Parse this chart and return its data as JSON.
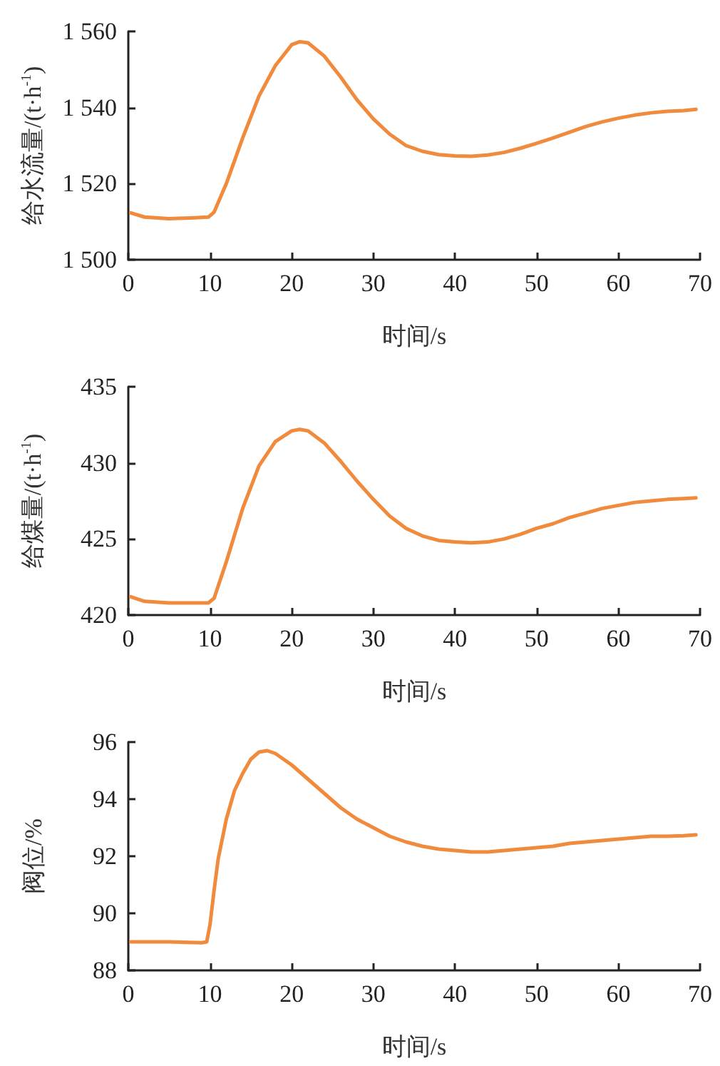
{
  "chart_data": [
    {
      "type": "line",
      "xlabel": "时间/s",
      "ylabel": "给水流量/(t·h$^{-1}$)",
      "xlim": [
        0,
        70
      ],
      "xticks": [
        0,
        10,
        20,
        30,
        40,
        50,
        60,
        70
      ],
      "ylim": [
        1500,
        1560
      ],
      "yticks": [
        {
          "value": 1500,
          "label": "1 500"
        },
        {
          "value": 1520,
          "label": "1 520"
        },
        {
          "value": 1540,
          "label": "1 540"
        },
        {
          "value": 1560,
          "label": "1 560"
        }
      ],
      "grid": false,
      "marker": "none",
      "line_style": "solid",
      "series": [
        {
          "color": "#f08a3c",
          "x": [
            0.3,
            2,
            5,
            8,
            9.8,
            10.5,
            12,
            14,
            16,
            18,
            20,
            21,
            22,
            24,
            26,
            28,
            30,
            32,
            34,
            36,
            38,
            40,
            42,
            44,
            46,
            48,
            50,
            52,
            54,
            56,
            58,
            60,
            62,
            64,
            66,
            68,
            69.5
          ],
          "values": [
            1512.3,
            1511.2,
            1510.8,
            1511,
            1511.2,
            1512.5,
            1520,
            1532,
            1543,
            1551,
            1556.5,
            1557.3,
            1557,
            1553.5,
            1548,
            1542,
            1537,
            1533,
            1530,
            1528.5,
            1527.6,
            1527.3,
            1527.2,
            1527.5,
            1528.2,
            1529.3,
            1530.6,
            1532,
            1533.5,
            1535,
            1536.2,
            1537.2,
            1538,
            1538.6,
            1539,
            1539.2,
            1539.5
          ]
        }
      ]
    },
    {
      "type": "line",
      "xlabel": "时间/s",
      "ylabel": "给煤量/(t·h$^{-1}$)",
      "xlim": [
        0,
        70
      ],
      "xticks": [
        0,
        10,
        20,
        30,
        40,
        50,
        60,
        70
      ],
      "ylim": [
        420,
        435
      ],
      "yticks": [
        420,
        425,
        430,
        435
      ],
      "grid": false,
      "marker": "none",
      "line_style": "solid",
      "series": [
        {
          "color": "#f08a3c",
          "x": [
            0.3,
            2,
            5,
            8,
            9.8,
            10.5,
            12,
            14,
            16,
            18,
            20,
            21,
            22,
            24,
            26,
            28,
            30,
            32,
            34,
            36,
            38,
            40,
            42,
            44,
            46,
            48,
            50,
            52,
            54,
            56,
            58,
            60,
            62,
            64,
            66,
            68,
            69.5
          ],
          "values": [
            421.2,
            420.9,
            420.8,
            420.8,
            420.8,
            421.1,
            423.5,
            427,
            429.8,
            431.4,
            432.1,
            432.2,
            432.1,
            431.3,
            430.1,
            428.8,
            427.6,
            426.5,
            425.7,
            425.2,
            424.9,
            424.8,
            424.75,
            424.8,
            425,
            425.3,
            425.7,
            426,
            426.4,
            426.7,
            427,
            427.2,
            427.4,
            427.5,
            427.6,
            427.65,
            427.7
          ]
        }
      ]
    },
    {
      "type": "line",
      "xlabel": "时间/s",
      "ylabel": "阀位/%",
      "xlim": [
        0,
        70
      ],
      "xticks": [
        0,
        10,
        20,
        30,
        40,
        50,
        60,
        70
      ],
      "ylim": [
        88,
        96
      ],
      "yticks": [
        88,
        90,
        92,
        94,
        96
      ],
      "grid": false,
      "marker": "none",
      "line_style": "solid",
      "series": [
        {
          "color": "#f08a3c",
          "x": [
            0.3,
            5,
            9,
            9.6,
            10,
            10.5,
            11,
            12,
            13,
            14,
            15,
            16,
            17,
            18,
            20,
            22,
            24,
            26,
            28,
            30,
            32,
            34,
            36,
            38,
            40,
            42,
            44,
            46,
            48,
            50,
            52,
            54,
            56,
            58,
            60,
            62,
            64,
            66,
            68,
            69.5
          ],
          "values": [
            89.0,
            89.0,
            88.97,
            89.0,
            89.6,
            90.8,
            91.9,
            93.3,
            94.3,
            94.9,
            95.4,
            95.65,
            95.7,
            95.6,
            95.2,
            94.7,
            94.2,
            93.7,
            93.3,
            93.0,
            92.7,
            92.5,
            92.35,
            92.25,
            92.2,
            92.15,
            92.15,
            92.2,
            92.25,
            92.3,
            92.35,
            92.45,
            92.5,
            92.55,
            92.6,
            92.65,
            92.7,
            92.7,
            92.72,
            92.75
          ]
        }
      ]
    }
  ]
}
